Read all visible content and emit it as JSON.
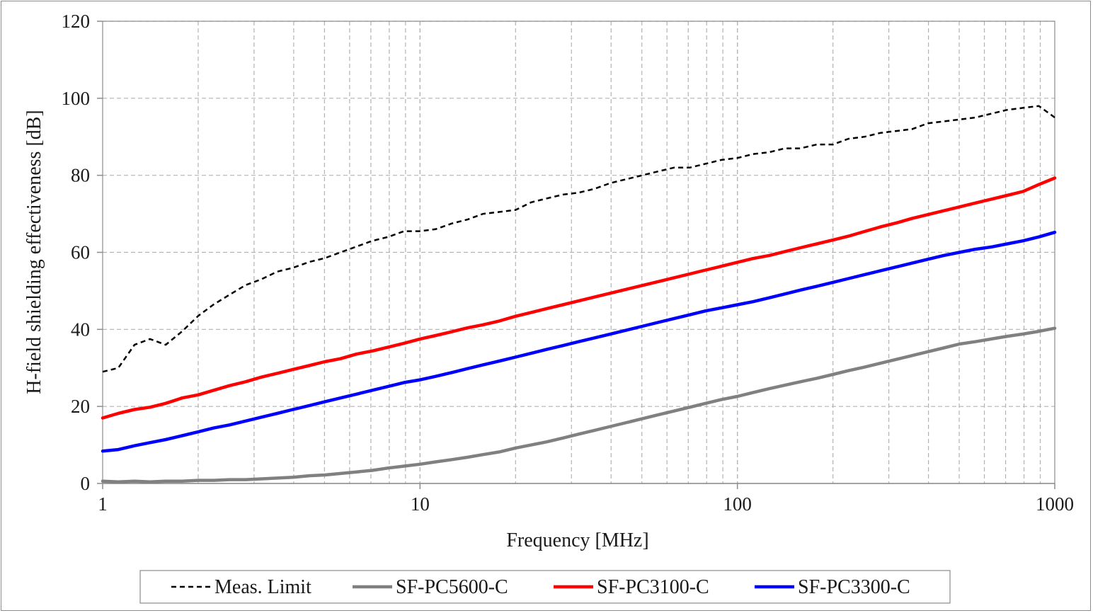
{
  "chart_data": {
    "type": "line",
    "xlabel": "Frequency [MHz]",
    "ylabel": "H-field shielding effectiveness [dB]",
    "xscale": "log",
    "xlim": [
      1,
      1000
    ],
    "ylim": [
      0,
      120
    ],
    "xticks": [
      1,
      10,
      100,
      1000
    ],
    "xtick_labels": [
      "1",
      "10",
      "100",
      "1000"
    ],
    "yticks": [
      0,
      20,
      40,
      60,
      80,
      100,
      120
    ],
    "ytick_labels": [
      "0",
      "20",
      "40",
      "60",
      "80",
      "100",
      "120"
    ],
    "grid": "dashed major and minor",
    "legend_position": "bottom",
    "series": [
      {
        "name": "Meas. Limit",
        "color": "#000000",
        "style": "dashed",
        "x": [
          1,
          1.12,
          1.26,
          1.41,
          1.58,
          1.78,
          2,
          2.24,
          2.51,
          2.82,
          3.16,
          3.55,
          3.98,
          4.47,
          5.01,
          5.62,
          6.31,
          7.08,
          7.94,
          8.91,
          10,
          11.2,
          12.6,
          14.1,
          15.8,
          17.8,
          20,
          22.4,
          25.1,
          28.2,
          31.6,
          35.5,
          39.8,
          44.7,
          50.1,
          56.2,
          63.1,
          70.8,
          79.4,
          89.1,
          100,
          112,
          126,
          141,
          158,
          178,
          200,
          224,
          251,
          282,
          316,
          355,
          398,
          447,
          501,
          562,
          631,
          708,
          794,
          891,
          1000
        ],
        "y": [
          29,
          30,
          36,
          37.5,
          36,
          39.5,
          43.5,
          46.5,
          49,
          51.5,
          53,
          55,
          56,
          57.5,
          58.5,
          60,
          61.5,
          63,
          64,
          65.5,
          65.5,
          66,
          67.5,
          68.5,
          70,
          70.5,
          71,
          73,
          74,
          75,
          75.5,
          76.5,
          78,
          79,
          80,
          81,
          82,
          82,
          83,
          84,
          84.5,
          85.5,
          86,
          87,
          87,
          88,
          88,
          89.5,
          90,
          91,
          91.5,
          92,
          93.5,
          94,
          94.5,
          95,
          96,
          97,
          97.5,
          98,
          95
        ]
      },
      {
        "name": "SF-PC5600-C",
        "color": "#808080",
        "style": "solid",
        "x": [
          1,
          1.12,
          1.26,
          1.41,
          1.58,
          1.78,
          2,
          2.24,
          2.51,
          2.82,
          3.16,
          3.55,
          3.98,
          4.47,
          5.01,
          5.62,
          6.31,
          7.08,
          7.94,
          8.91,
          10,
          11.2,
          12.6,
          14.1,
          15.8,
          17.8,
          20,
          22.4,
          25.1,
          28.2,
          31.6,
          35.5,
          39.8,
          44.7,
          50.1,
          56.2,
          63.1,
          70.8,
          79.4,
          89.1,
          100,
          112,
          126,
          141,
          158,
          178,
          200,
          224,
          251,
          282,
          316,
          355,
          398,
          447,
          501,
          562,
          631,
          708,
          794,
          891,
          1000
        ],
        "y": [
          0.6,
          0.4,
          0.6,
          0.4,
          0.6,
          0.6,
          0.8,
          0.8,
          1,
          1,
          1.2,
          1.4,
          1.6,
          2,
          2.2,
          2.6,
          3,
          3.4,
          4,
          4.5,
          5,
          5.6,
          6.2,
          6.8,
          7.5,
          8.2,
          9.2,
          10,
          10.8,
          11.8,
          12.8,
          13.8,
          14.8,
          15.8,
          16.8,
          17.8,
          18.8,
          19.8,
          20.8,
          21.8,
          22.6,
          23.6,
          24.6,
          25.5,
          26.4,
          27.3,
          28.3,
          29.3,
          30.2,
          31.2,
          32.2,
          33.2,
          34.2,
          35.2,
          36.2,
          36.8,
          37.5,
          38.2,
          38.8,
          39.5,
          40.3
        ]
      },
      {
        "name": "SF-PC3100-C",
        "color": "#ff0000",
        "style": "solid",
        "x": [
          1,
          1.12,
          1.26,
          1.41,
          1.58,
          1.78,
          2,
          2.24,
          2.51,
          2.82,
          3.16,
          3.55,
          3.98,
          4.47,
          5.01,
          5.62,
          6.31,
          7.08,
          7.94,
          8.91,
          10,
          11.2,
          12.6,
          14.1,
          15.8,
          17.8,
          20,
          22.4,
          25.1,
          28.2,
          31.6,
          35.5,
          39.8,
          44.7,
          50.1,
          56.2,
          63.1,
          70.8,
          79.4,
          89.1,
          100,
          112,
          126,
          141,
          158,
          178,
          200,
          224,
          251,
          282,
          316,
          355,
          398,
          447,
          501,
          562,
          631,
          708,
          794,
          891,
          1000
        ],
        "y": [
          17,
          18.2,
          19.2,
          19.8,
          20.8,
          22.2,
          23,
          24.2,
          25.4,
          26.4,
          27.6,
          28.6,
          29.6,
          30.6,
          31.6,
          32.4,
          33.6,
          34.4,
          35.4,
          36.4,
          37.5,
          38.4,
          39.4,
          40.4,
          41.2,
          42.2,
          43.4,
          44.4,
          45.4,
          46.4,
          47.4,
          48.4,
          49.4,
          50.4,
          51.4,
          52.4,
          53.4,
          54.4,
          55.4,
          56.4,
          57.4,
          58.4,
          59.2,
          60.2,
          61.2,
          62.2,
          63.2,
          64.2,
          65.4,
          66.6,
          67.6,
          68.8,
          69.8,
          70.8,
          71.8,
          72.8,
          73.8,
          74.8,
          75.8,
          77.6,
          79.3
        ]
      },
      {
        "name": "SF-PC3300-C",
        "color": "#0000ff",
        "style": "solid",
        "x": [
          1,
          1.12,
          1.26,
          1.41,
          1.58,
          1.78,
          2,
          2.24,
          2.51,
          2.82,
          3.16,
          3.55,
          3.98,
          4.47,
          5.01,
          5.62,
          6.31,
          7.08,
          7.94,
          8.91,
          10,
          11.2,
          12.6,
          14.1,
          15.8,
          17.8,
          20,
          22.4,
          25.1,
          28.2,
          31.6,
          35.5,
          39.8,
          44.7,
          50.1,
          56.2,
          63.1,
          70.8,
          79.4,
          89.1,
          100,
          112,
          126,
          141,
          158,
          178,
          200,
          224,
          251,
          282,
          316,
          355,
          398,
          447,
          501,
          562,
          631,
          708,
          794,
          891,
          1000
        ],
        "y": [
          8.4,
          8.8,
          9.8,
          10.6,
          11.4,
          12.4,
          13.4,
          14.4,
          15.2,
          16.2,
          17.2,
          18.2,
          19.2,
          20.2,
          21.2,
          22.2,
          23.2,
          24.2,
          25.2,
          26.2,
          26.9,
          27.8,
          28.8,
          29.8,
          30.8,
          31.8,
          32.8,
          33.8,
          34.8,
          35.8,
          36.8,
          37.8,
          38.8,
          39.8,
          40.8,
          41.8,
          42.8,
          43.8,
          44.8,
          45.6,
          46.4,
          47.2,
          48.2,
          49.2,
          50.2,
          51.2,
          52.2,
          53.2,
          54.2,
          55.2,
          56.2,
          57.2,
          58.2,
          59.2,
          60,
          60.8,
          61.4,
          62.2,
          63,
          64,
          65.2
        ]
      }
    ]
  }
}
